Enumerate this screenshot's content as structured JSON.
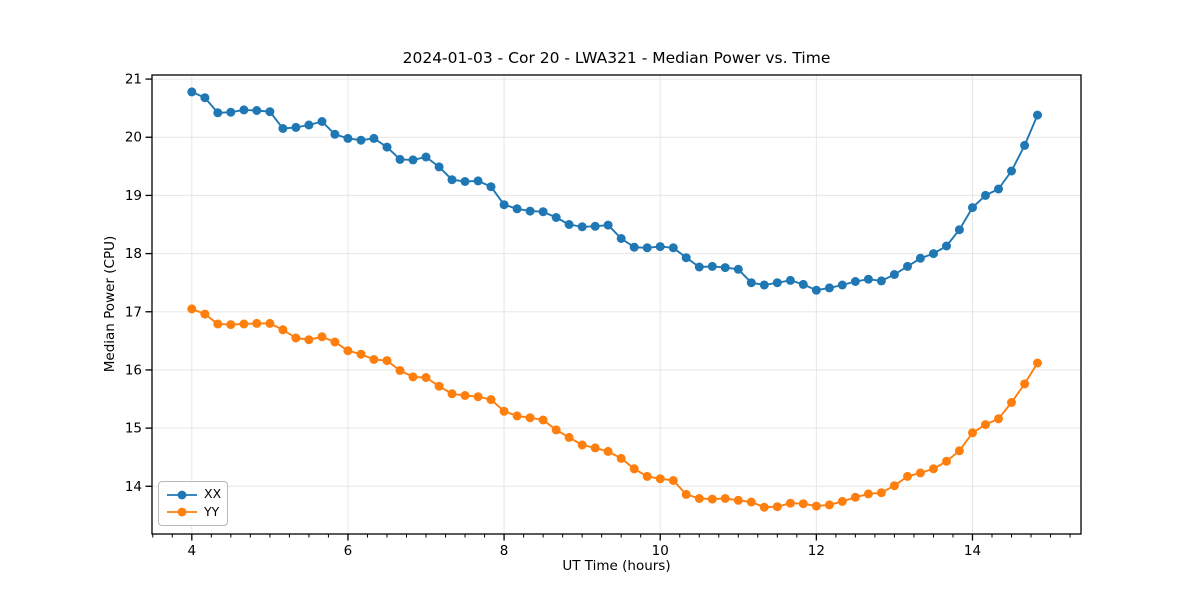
{
  "chart_data": {
    "type": "line",
    "title": "2024-01-03 - Cor 20 - LWA321 - Median Power vs. Time",
    "xlabel": "UT Time (hours)",
    "ylabel": "Median Power (CPU)",
    "xlim": [
      3.49,
      15.39
    ],
    "ylim": [
      13.18,
      21.07
    ],
    "x_major_ticks": [
      4,
      6,
      8,
      10,
      12,
      14
    ],
    "x_minor_tick_step": 0.25,
    "y_major_ticks": [
      14,
      15,
      16,
      17,
      18,
      19,
      20,
      21
    ],
    "grid": "major-both",
    "grid_color": "#e6e6e6",
    "legend_position": "lower-left",
    "marker": "circle",
    "x": [
      4.0,
      4.167,
      4.333,
      4.5,
      4.667,
      4.833,
      5.0,
      5.167,
      5.333,
      5.5,
      5.667,
      5.833,
      6.0,
      6.167,
      6.333,
      6.5,
      6.667,
      6.833,
      7.0,
      7.167,
      7.333,
      7.5,
      7.667,
      7.833,
      8.0,
      8.167,
      8.333,
      8.5,
      8.667,
      8.833,
      9.0,
      9.167,
      9.333,
      9.5,
      9.667,
      9.833,
      10.0,
      10.167,
      10.333,
      10.5,
      10.667,
      10.833,
      11.0,
      11.167,
      11.333,
      11.5,
      11.667,
      11.833,
      12.0,
      12.167,
      12.333,
      12.5,
      12.667,
      12.833,
      13.0,
      13.167,
      13.333,
      13.5,
      13.667,
      13.833,
      14.0,
      14.167,
      14.333,
      14.5,
      14.667,
      14.833
    ],
    "series": [
      {
        "name": "XX",
        "color": "#1f77b4",
        "values": [
          20.78,
          20.68,
          20.42,
          20.43,
          20.47,
          20.46,
          20.44,
          20.15,
          20.17,
          20.21,
          20.27,
          20.05,
          19.98,
          19.95,
          19.98,
          19.83,
          19.62,
          19.61,
          19.66,
          19.49,
          19.27,
          19.24,
          19.25,
          19.15,
          18.84,
          18.77,
          18.73,
          18.72,
          18.62,
          18.5,
          18.46,
          18.47,
          18.49,
          18.26,
          18.11,
          18.1,
          18.12,
          18.1,
          17.93,
          17.77,
          17.78,
          17.76,
          17.73,
          17.5,
          17.46,
          17.5,
          17.54,
          17.47,
          17.37,
          17.41,
          17.46,
          17.52,
          17.56,
          17.53,
          17.64,
          17.78,
          17.92,
          18.0,
          18.13,
          18.41,
          18.79,
          19.0,
          19.11,
          19.42,
          19.86,
          20.38
        ]
      },
      {
        "name": "YY",
        "color": "#ff7f0e",
        "values": [
          17.05,
          16.96,
          16.79,
          16.78,
          16.79,
          16.8,
          16.8,
          16.69,
          16.55,
          16.52,
          16.57,
          16.48,
          16.33,
          16.27,
          16.18,
          16.16,
          15.99,
          15.88,
          15.87,
          15.72,
          15.59,
          15.56,
          15.54,
          15.49,
          15.29,
          15.21,
          15.18,
          15.14,
          14.97,
          14.84,
          14.71,
          14.66,
          14.6,
          14.48,
          14.3,
          14.17,
          14.13,
          14.1,
          13.86,
          13.79,
          13.78,
          13.79,
          13.76,
          13.73,
          13.64,
          13.65,
          13.71,
          13.7,
          13.66,
          13.68,
          13.74,
          13.81,
          13.87,
          13.89,
          14.01,
          14.17,
          14.23,
          14.3,
          14.43,
          14.61,
          14.92,
          15.06,
          15.16,
          15.44,
          15.76,
          16.12
        ]
      }
    ]
  }
}
